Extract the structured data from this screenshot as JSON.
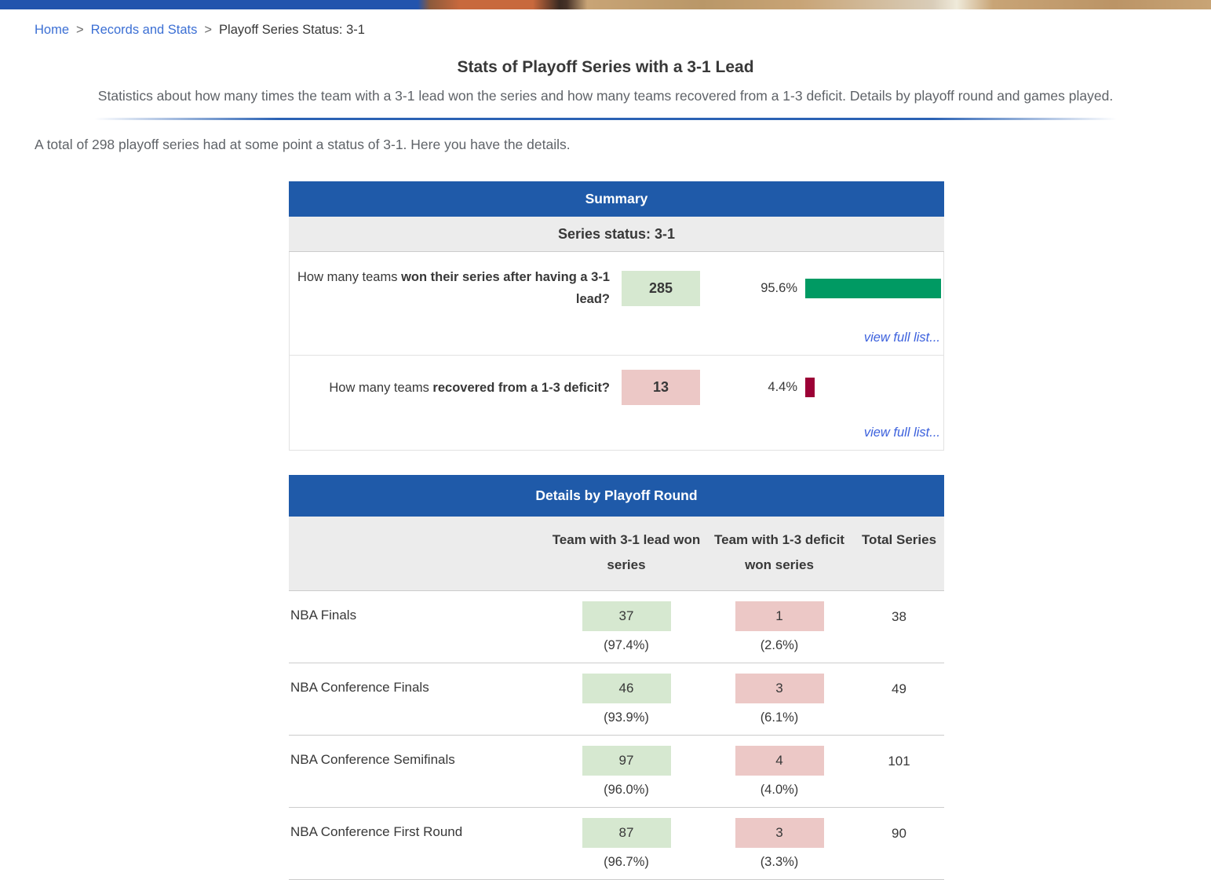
{
  "colors": {
    "accent-blue": "#1f5aa9",
    "divider-blue": "#2b62b4",
    "banner-blue": "#2254ad",
    "banner-orange": "#c8693d",
    "banner-wood": "#c8a476",
    "header-gray": "#ececec",
    "green-box": "#d6e8d0",
    "pink-box": "#ecc8c6",
    "green-bar": "#009a63",
    "maroon-bar": "#9c0136",
    "link-blue": "#3c61dd",
    "link-breadcrumb": "#3b6fd4",
    "text-dark": "#383838",
    "text-gray": "#5f6368",
    "border-light": "#cccccc",
    "border-lighter": "#e2e2e2"
  },
  "breadcrumb": {
    "separator": ">",
    "items": [
      {
        "label": "Home"
      },
      {
        "label": "Records and Stats"
      }
    ],
    "current": "Playoff Series Status: 3-1"
  },
  "page": {
    "title": "Stats of Playoff Series with a 3-1 Lead",
    "subtitle": "Statistics about how many times the team with a 3-1 lead won the series and how many teams recovered from a 1-3 deficit. Details by playoff round and games played.",
    "intro": "A total of 298 playoff series had at some point a status of 3-1. Here you have the details."
  },
  "summary": {
    "header": "Summary",
    "subheader": "Series status: 3-1",
    "rows": [
      {
        "question_prefix": "How many teams ",
        "question_bold": "won their series after having a 3-1 lead?",
        "count": "285",
        "percent_label": "95.6%",
        "percent_value": 95.6,
        "link": "view full list..."
      },
      {
        "question_prefix": "How many teams ",
        "question_bold": "recovered from a 1-3 deficit?",
        "count": "13",
        "percent_label": "4.4%",
        "percent_value": 4.4,
        "link": "view full list..."
      }
    ]
  },
  "details": {
    "header": "Details by Playoff Round",
    "columns": {
      "col2": "Team with 3-1 lead won series",
      "col3": "Team with 1-3 deficit won series",
      "col4": "Total Series"
    },
    "rows": [
      {
        "round": "NBA Finals",
        "lead_won": "37",
        "lead_won_pct": "(97.4%)",
        "deficit_won": "1",
        "deficit_won_pct": "(2.6%)",
        "total": "38"
      },
      {
        "round": "NBA Conference Finals",
        "lead_won": "46",
        "lead_won_pct": "(93.9%)",
        "deficit_won": "3",
        "deficit_won_pct": "(6.1%)",
        "total": "49"
      },
      {
        "round": "NBA Conference Semifinals",
        "lead_won": "97",
        "lead_won_pct": "(96.0%)",
        "deficit_won": "4",
        "deficit_won_pct": "(4.0%)",
        "total": "101"
      },
      {
        "round": "NBA Conference First Round",
        "lead_won": "87",
        "lead_won_pct": "(96.7%)",
        "deficit_won": "3",
        "deficit_won_pct": "(3.3%)",
        "total": "90"
      }
    ]
  }
}
